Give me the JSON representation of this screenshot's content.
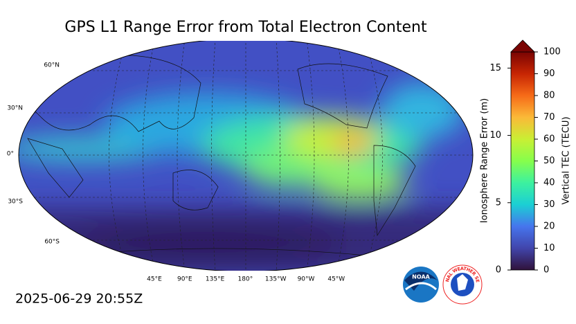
{
  "title": "GPS L1 Range Error from Total Electron Content",
  "timestamp": "2025-06-29 20:55Z",
  "map": {
    "lat_labels": [
      "60°N",
      "30°N",
      "0°",
      "30°S",
      "60°S"
    ],
    "lon_labels": [
      "45°E",
      "90°E",
      "135°E",
      "180°",
      "135°W",
      "90°W",
      "45°W"
    ]
  },
  "colorbar": {
    "label": "Vertical TEC (TECU)",
    "lim": [
      0,
      100
    ],
    "ticks": [
      0,
      10,
      20,
      30,
      40,
      50,
      60,
      70,
      80,
      90,
      100
    ]
  },
  "range_error_axis": {
    "label": "Ionosphere Range Error (m)",
    "lim": [
      0,
      16.2
    ],
    "ticks": [
      0,
      5,
      10,
      15
    ]
  },
  "logos": {
    "noaa": "NOAA",
    "nws": "NATIONAL WEATHER SERVICE"
  }
}
